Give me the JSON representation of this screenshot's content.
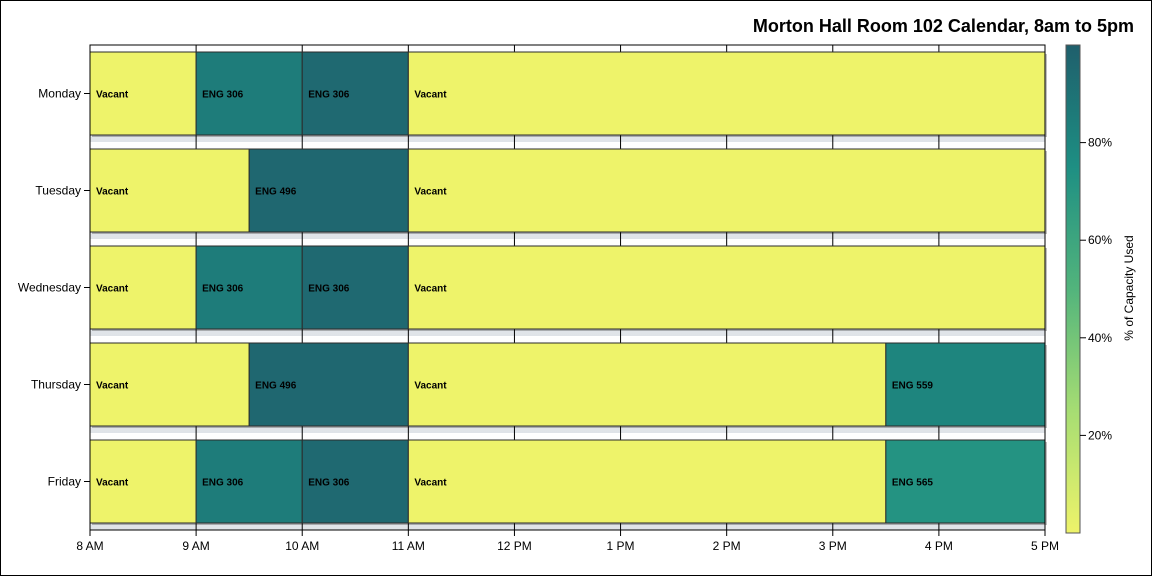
{
  "chart_data": {
    "type": "bar",
    "title": "Morton Hall Room 102 Calendar, 8am to 5pm",
    "xlabel": "",
    "ylabel": "",
    "x_range_hours": [
      8,
      17
    ],
    "x_ticks": [
      {
        "hour": 8,
        "label": "8 AM"
      },
      {
        "hour": 9,
        "label": "9 AM"
      },
      {
        "hour": 10,
        "label": "10 AM"
      },
      {
        "hour": 11,
        "label": "11 AM"
      },
      {
        "hour": 12,
        "label": "12 PM"
      },
      {
        "hour": 13,
        "label": "1 PM"
      },
      {
        "hour": 14,
        "label": "2 PM"
      },
      {
        "hour": 15,
        "label": "3 PM"
      },
      {
        "hour": 16,
        "label": "4 PM"
      },
      {
        "hour": 17,
        "label": "5 PM"
      }
    ],
    "days": [
      "Monday",
      "Tuesday",
      "Wednesday",
      "Thursday",
      "Friday"
    ],
    "segments": [
      {
        "day": "Monday",
        "start": 8,
        "end": 9,
        "label": "Vacant",
        "capacity": 0
      },
      {
        "day": "Monday",
        "start": 9,
        "end": 10,
        "label": "ENG 306",
        "capacity": 85
      },
      {
        "day": "Monday",
        "start": 10,
        "end": 11,
        "label": "ENG 306",
        "capacity": 95
      },
      {
        "day": "Monday",
        "start": 11,
        "end": 17,
        "label": "Vacant",
        "capacity": 0
      },
      {
        "day": "Tuesday",
        "start": 8,
        "end": 9.5,
        "label": "Vacant",
        "capacity": 0
      },
      {
        "day": "Tuesday",
        "start": 9.5,
        "end": 11,
        "label": "ENG 496",
        "capacity": 96
      },
      {
        "day": "Tuesday",
        "start": 11,
        "end": 17,
        "label": "Vacant",
        "capacity": 0
      },
      {
        "day": "Wednesday",
        "start": 8,
        "end": 9,
        "label": "Vacant",
        "capacity": 0
      },
      {
        "day": "Wednesday",
        "start": 9,
        "end": 10,
        "label": "ENG 306",
        "capacity": 85
      },
      {
        "day": "Wednesday",
        "start": 10,
        "end": 11,
        "label": "ENG 306",
        "capacity": 95
      },
      {
        "day": "Wednesday",
        "start": 11,
        "end": 17,
        "label": "Vacant",
        "capacity": 0
      },
      {
        "day": "Thursday",
        "start": 8,
        "end": 9.5,
        "label": "Vacant",
        "capacity": 0
      },
      {
        "day": "Thursday",
        "start": 9.5,
        "end": 11,
        "label": "ENG 496",
        "capacity": 96
      },
      {
        "day": "Thursday",
        "start": 11,
        "end": 15.5,
        "label": "Vacant",
        "capacity": 0
      },
      {
        "day": "Thursday",
        "start": 15.5,
        "end": 17,
        "label": "ENG 559",
        "capacity": 80
      },
      {
        "day": "Friday",
        "start": 8,
        "end": 9,
        "label": "Vacant",
        "capacity": 0
      },
      {
        "day": "Friday",
        "start": 9,
        "end": 10,
        "label": "ENG 306",
        "capacity": 85
      },
      {
        "day": "Friday",
        "start": 10,
        "end": 11,
        "label": "ENG 306",
        "capacity": 95
      },
      {
        "day": "Friday",
        "start": 11,
        "end": 15.5,
        "label": "Vacant",
        "capacity": 0
      },
      {
        "day": "Friday",
        "start": 15.5,
        "end": 17,
        "label": "ENG 565",
        "capacity": 72
      }
    ],
    "color_legend": {
      "title": "% of Capacity Used",
      "placement": "right",
      "range": [
        0,
        100
      ],
      "ticks": [
        {
          "value": 20,
          "label": "20%"
        },
        {
          "value": 40,
          "label": "40%"
        },
        {
          "value": 60,
          "label": "60%"
        },
        {
          "value": 80,
          "label": "80%"
        }
      ],
      "gradient_stops": [
        {
          "value": 0,
          "color": "#eef36a"
        },
        {
          "value": 25,
          "color": "#a6dd73"
        },
        {
          "value": 50,
          "color": "#52b47c"
        },
        {
          "value": 75,
          "color": "#1e8f83"
        },
        {
          "value": 100,
          "color": "#1f5f6c"
        }
      ]
    },
    "grid": true
  }
}
